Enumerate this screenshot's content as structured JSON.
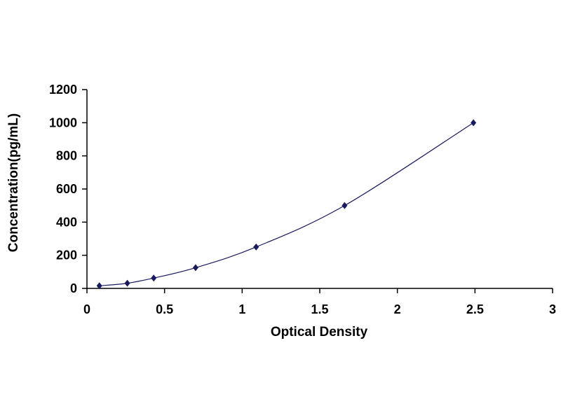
{
  "chart_data": {
    "type": "scatter",
    "title": "",
    "xlabel": "Optical Density",
    "ylabel": "Concentration(pg/mL)",
    "xlim": [
      0,
      3
    ],
    "ylim": [
      0,
      1200
    ],
    "x_ticks": [
      "0",
      "0.5",
      "1",
      "1.5",
      "2",
      "2.5",
      "3"
    ],
    "y_ticks": [
      "0",
      "200",
      "400",
      "600",
      "800",
      "1000",
      "1200"
    ],
    "grid": false,
    "legend": "none",
    "series": [
      {
        "x": [
          0.08,
          0.26,
          0.43,
          0.7,
          1.09,
          1.66,
          2.49
        ],
        "y": [
          15.6,
          31.2,
          62.5,
          125,
          250,
          500,
          1000
        ],
        "marker": "diamond",
        "color": "#1a1a5e",
        "trendline": "polynomial"
      }
    ]
  }
}
